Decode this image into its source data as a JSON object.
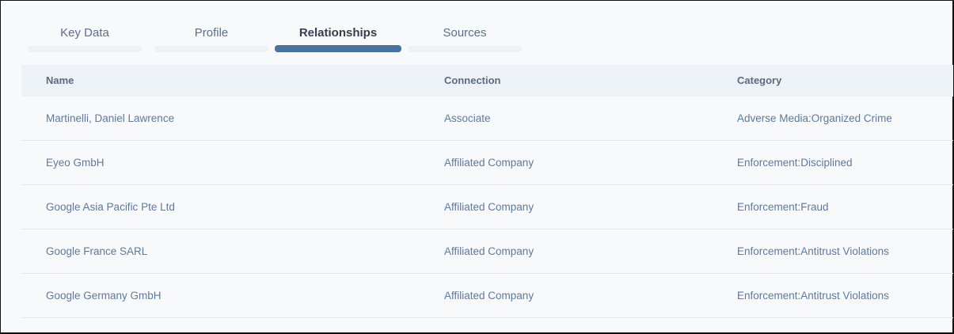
{
  "tabs": [
    {
      "label": "Key Data",
      "active": false
    },
    {
      "label": "Profile",
      "active": false
    },
    {
      "label": "Relationships",
      "active": true
    },
    {
      "label": "Sources",
      "active": false
    }
  ],
  "table": {
    "headers": [
      "Name",
      "Connection",
      "Category"
    ],
    "rows": [
      [
        "Martinelli, Daniel Lawrence",
        "Associate",
        "Adverse Media:Organized Crime"
      ],
      [
        "Eyeo GmbH",
        "Affiliated Company",
        "Enforcement:Disciplined"
      ],
      [
        "Google Asia Pacific Pte Ltd",
        "Affiliated Company",
        "Enforcement:Fraud"
      ],
      [
        "Google France SARL",
        "Affiliated Company",
        "Enforcement:Antitrust Violations"
      ],
      [
        "Google Germany GmbH",
        "Affiliated Company",
        "Enforcement:Antitrust Violations"
      ]
    ]
  },
  "colors": {
    "accent": "#4673a3",
    "link": "#5a7aa0",
    "header_bg": "#edf2f6"
  }
}
